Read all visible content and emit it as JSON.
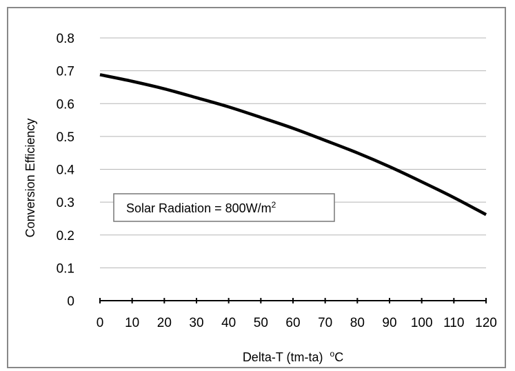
{
  "chart_data": {
    "type": "line",
    "title": "",
    "xlabel": "Delta-T (tm-ta)",
    "xlabel_unit_sup": "o",
    "xlabel_unit": "C",
    "ylabel": "Conversion Efficiency",
    "xlim": [
      0,
      120
    ],
    "ylim": [
      0,
      0.8
    ],
    "x_ticks": [
      "0",
      "10",
      "20",
      "30",
      "40",
      "50",
      "60",
      "70",
      "80",
      "90",
      "100",
      "110",
      "120"
    ],
    "y_ticks": [
      "0",
      "0.1",
      "0.2",
      "0.3",
      "0.4",
      "0.5",
      "0.6",
      "0.7",
      "0.8"
    ],
    "grid": true,
    "legend": "none",
    "annotation": {
      "text": "Solar Radiation = 800W/m",
      "sup": "2"
    },
    "series": [
      {
        "color": "#000000",
        "x": [
          0,
          10,
          20,
          30,
          40,
          50,
          60,
          70,
          80,
          90,
          100,
          110,
          120
        ],
        "y": [
          0.688,
          0.668,
          0.645,
          0.618,
          0.59,
          0.558,
          0.525,
          0.488,
          0.45,
          0.408,
          0.362,
          0.314,
          0.262
        ]
      }
    ]
  }
}
